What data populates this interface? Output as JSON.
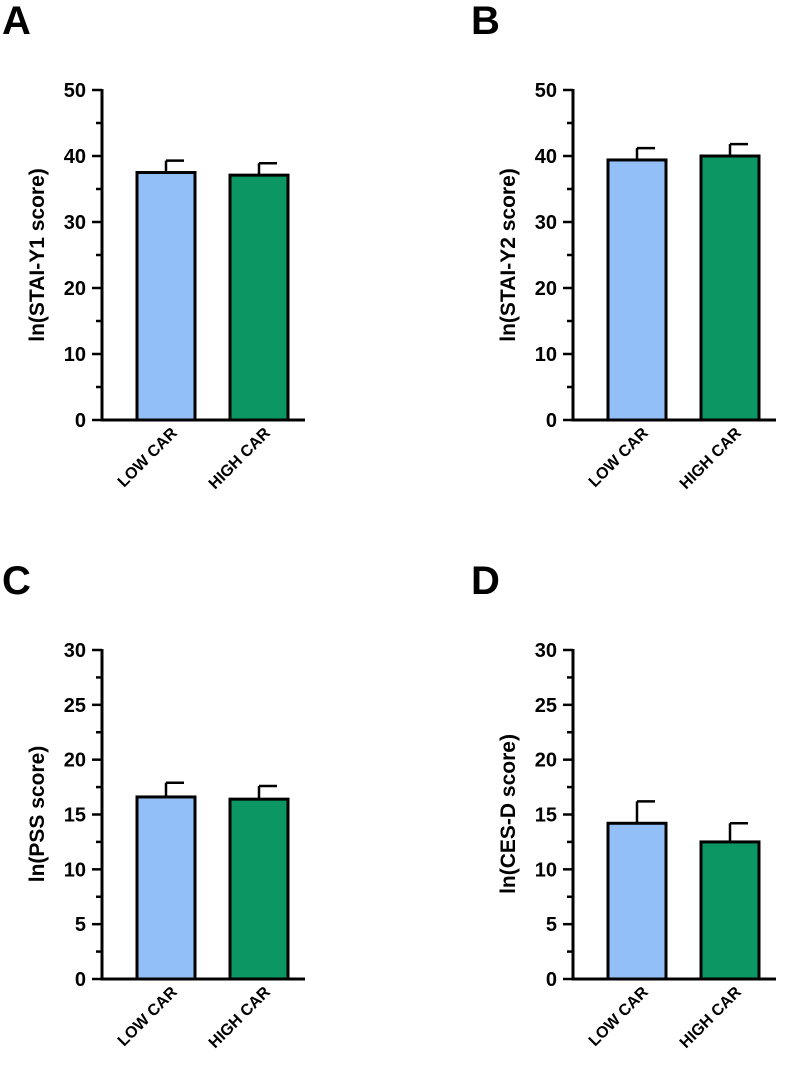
{
  "chart_data": [
    {
      "panel": "A",
      "type": "bar",
      "categories": [
        "LOW CAR",
        "HIGH CAR"
      ],
      "values": [
        37.5,
        37.1
      ],
      "errors": [
        1.8,
        1.8
      ],
      "colors": [
        "#93BFF8",
        "#0C9663"
      ],
      "ylabel": "ln(STAI-Y1 score)",
      "ylim": [
        0,
        50
      ],
      "yticks": [
        "0",
        "10",
        "20",
        "30",
        "40",
        "50"
      ]
    },
    {
      "panel": "B",
      "type": "bar",
      "categories": [
        "LOW CAR",
        "HIGH CAR"
      ],
      "values": [
        39.4,
        40.0
      ],
      "errors": [
        1.8,
        1.8
      ],
      "colors": [
        "#93BFF8",
        "#0C9663"
      ],
      "ylabel": "ln(STAI-Y2 score)",
      "ylim": [
        0,
        50
      ],
      "yticks": [
        "0",
        "10",
        "20",
        "30",
        "40",
        "50"
      ]
    },
    {
      "panel": "C",
      "type": "bar",
      "categories": [
        "LOW CAR",
        "HIGH CAR"
      ],
      "values": [
        16.6,
        16.4
      ],
      "errors": [
        1.3,
        1.2
      ],
      "colors": [
        "#93BFF8",
        "#0C9663"
      ],
      "ylabel": "ln(PSS score)",
      "ylim": [
        0,
        30
      ],
      "yticks": [
        "0",
        "5",
        "10",
        "15",
        "20",
        "25",
        "30"
      ]
    },
    {
      "panel": "D",
      "type": "bar",
      "categories": [
        "LOW CAR",
        "HIGH CAR"
      ],
      "values": [
        14.2,
        12.5
      ],
      "errors": [
        2.0,
        1.7
      ],
      "colors": [
        "#93BFF8",
        "#0C9663"
      ],
      "ylabel": "ln(CES-D score)",
      "ylim": [
        0,
        30
      ],
      "yticks": [
        "0",
        "5",
        "10",
        "15",
        "20",
        "25",
        "30"
      ]
    }
  ]
}
